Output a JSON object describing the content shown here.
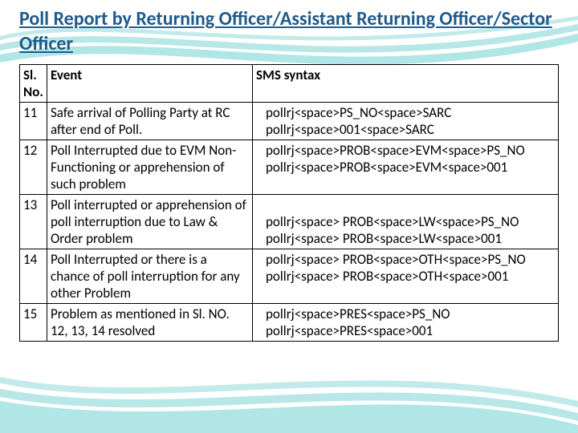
{
  "title": {
    "text": "Poll Report by Returning Officer/Assistant Returning Officer/Sector Officer",
    "color": "#1f5a8a",
    "fontsize": 24
  },
  "table": {
    "fontsize": 17,
    "border_color": "#000000",
    "columns": [
      {
        "key": "slno",
        "label": "Sl. No."
      },
      {
        "key": "event",
        "label": "Event"
      },
      {
        "key": "sms",
        "label": "SMS syntax"
      }
    ],
    "rows": [
      {
        "slno": "11",
        "event": "Safe arrival of Polling Party at RC after end of Poll.",
        "sms": "pollrj<space>PS_NO<space>SARC\npollrj<space>001<space>SARC"
      },
      {
        "slno": "12",
        "event": "Poll Interrupted due to EVM Non-Functioning or apprehension of such problem",
        "sms": "pollrj<space>PROB<space>EVM<space>PS_NO\npollrj<space>PROB<space>EVM<space>001"
      },
      {
        "slno": "13",
        "event": "Poll interrupted or apprehension of poll interruption due to Law & Order problem",
        "sms": "\npollrj<space> PROB<space>LW<space>PS_NO\npollrj<space> PROB<space>LW<space>001"
      },
      {
        "slno": "14",
        "event": "Poll Interrupted or there is a chance  of poll interruption for any other Problem",
        "sms": "pollrj<space> PROB<space>OTH<space>PS_NO\npollrj<space> PROB<space>OTH<space>001"
      },
      {
        "slno": "15",
        "event": "Problem as mentioned in Sl. NO. 12, 13, 14 resolved",
        "sms": "pollrj<space>PRES<space>PS_NO\npollrj<space>PRES<space>001"
      }
    ]
  }
}
